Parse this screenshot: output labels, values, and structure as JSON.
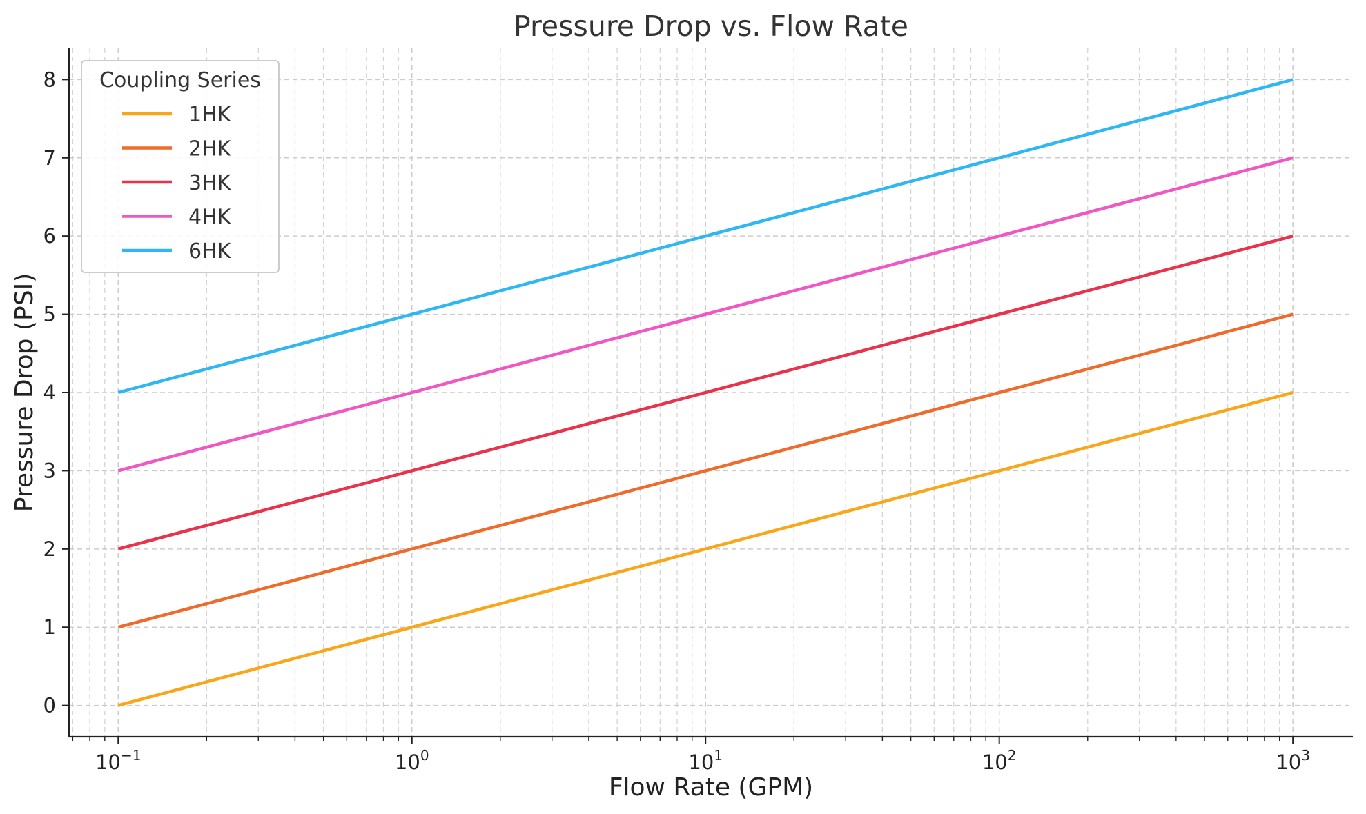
{
  "chart_data": {
    "type": "line",
    "title": "Pressure Drop vs. Flow Rate",
    "xlabel": "Flow Rate (GPM)",
    "ylabel": "Pressure Drop (PSI)",
    "xscale": "log",
    "xlim": [
      0.068,
      1600
    ],
    "ylim": [
      -0.4,
      8.4
    ],
    "grid": true,
    "legend": {
      "title": "Coupling Series",
      "placement": "top-left"
    },
    "x_ticks": [
      {
        "value": 0.1,
        "base": "10",
        "exp": "−1"
      },
      {
        "value": 1,
        "base": "10",
        "exp": "0"
      },
      {
        "value": 10,
        "base": "10",
        "exp": "1"
      },
      {
        "value": 100,
        "base": "10",
        "exp": "2"
      },
      {
        "value": 1000,
        "base": "10",
        "exp": "3"
      }
    ],
    "y_ticks": [
      0,
      1,
      2,
      3,
      4,
      5,
      6,
      7,
      8
    ],
    "x": [
      0.1,
      1000
    ],
    "series": [
      {
        "name": "1HK",
        "color": "#FAA61A",
        "values": [
          0,
          4
        ]
      },
      {
        "name": "2HK",
        "color": "#EE6B2B",
        "values": [
          1,
          5
        ]
      },
      {
        "name": "3HK",
        "color": "#E8334C",
        "values": [
          2,
          6
        ]
      },
      {
        "name": "4HK",
        "color": "#EF58C4",
        "values": [
          3,
          7
        ]
      },
      {
        "name": "6HK",
        "color": "#2EB7F2",
        "values": [
          4,
          8
        ]
      }
    ]
  }
}
